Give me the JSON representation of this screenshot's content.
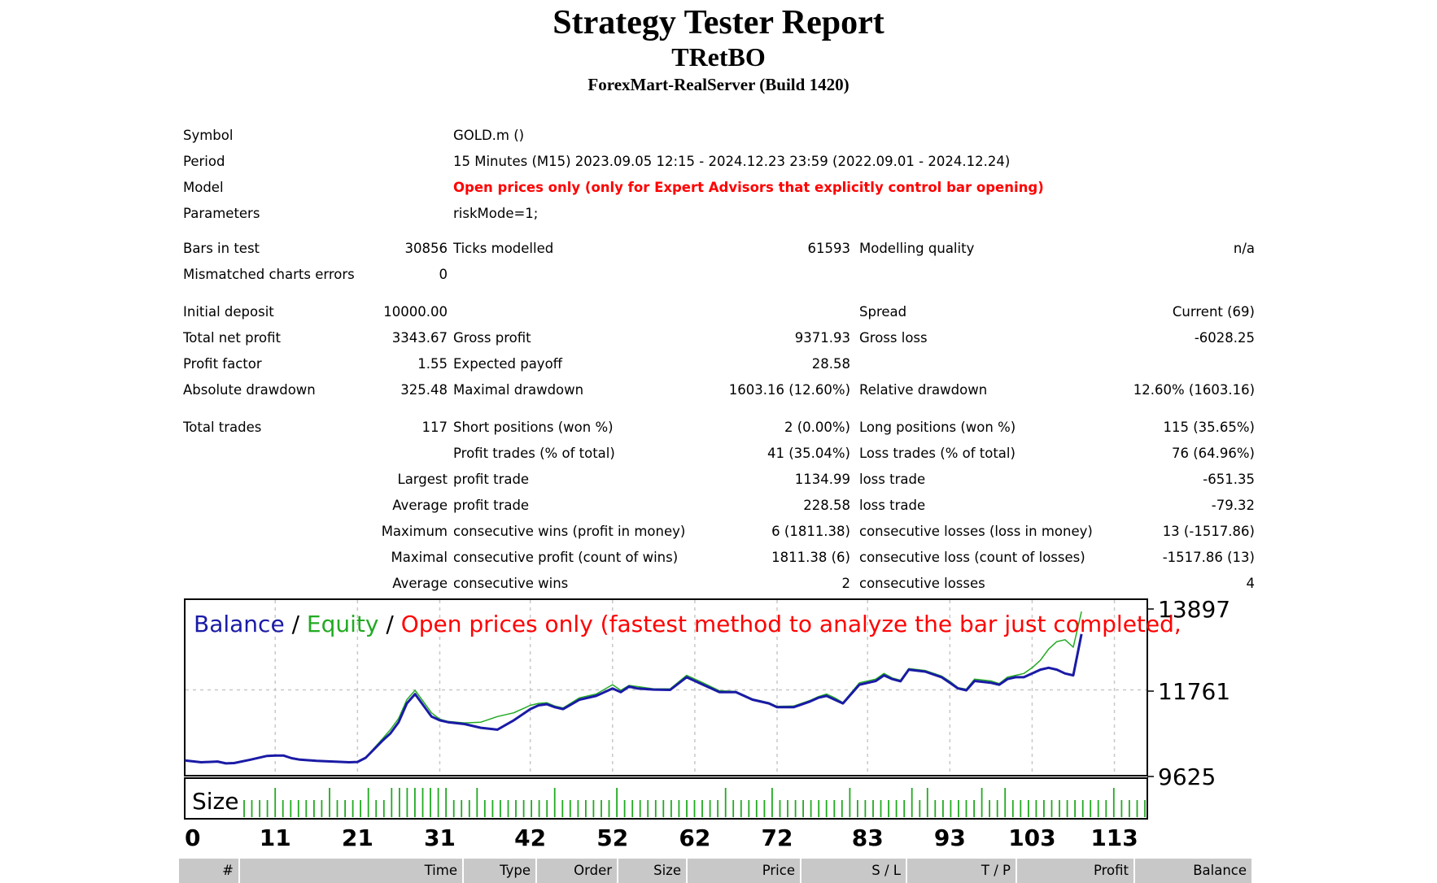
{
  "report": {
    "title": "Strategy Tester Report",
    "ea_name": "TRetBO",
    "server": "ForexMart-RealServer (Build 1420)"
  },
  "settings": {
    "symbol_label": "Symbol",
    "symbol_value": "GOLD.m ()",
    "period_label": "Period",
    "period_value": "15 Minutes (M15) 2023.09.05 12:15 - 2024.12.23 23:59 (2022.09.01 - 2024.12.24)",
    "model_label": "Model",
    "model_value": "Open prices only (only for Expert Advisors that explicitly control bar opening)",
    "parameters_label": "Parameters",
    "parameters_value": "riskMode=1;"
  },
  "test": {
    "bars_label": "Bars in test",
    "bars_value": "30856",
    "ticks_label": "Ticks modelled",
    "ticks_value": "61593",
    "quality_label": "Modelling quality",
    "quality_value": "n/a",
    "mismatch_label": "Mismatched charts errors",
    "mismatch_value": "0"
  },
  "money": {
    "initial_deposit_label": "Initial deposit",
    "initial_deposit_value": "10000.00",
    "spread_label": "Spread",
    "spread_value": "Current (69)",
    "net_profit_label": "Total net profit",
    "net_profit_value": "3343.67",
    "gross_profit_label": "Gross profit",
    "gross_profit_value": "9371.93",
    "gross_loss_label": "Gross loss",
    "gross_loss_value": "-6028.25",
    "profit_factor_label": "Profit factor",
    "profit_factor_value": "1.55",
    "expected_payoff_label": "Expected payoff",
    "expected_payoff_value": "28.58",
    "abs_dd_label": "Absolute drawdown",
    "abs_dd_value": "325.48",
    "max_dd_label": "Maximal drawdown",
    "max_dd_value": "1603.16 (12.60%)",
    "rel_dd_label": "Relative drawdown",
    "rel_dd_value": "12.60% (1603.16)"
  },
  "trades": {
    "total_label": "Total trades",
    "total_value": "117",
    "short_label": "Short positions (won %)",
    "short_value": "2 (0.00%)",
    "long_label": "Long positions (won %)",
    "long_value": "115 (35.65%)",
    "profit_trades_label": "Profit trades (% of total)",
    "profit_trades_value": "41 (35.04%)",
    "loss_trades_label": "Loss trades (% of total)",
    "loss_trades_value": "76 (64.96%)",
    "largest_label": "Largest",
    "largest_profit_label": "profit trade",
    "largest_profit_value": "1134.99",
    "largest_loss_label": "loss trade",
    "largest_loss_value": "-651.35",
    "average_label": "Average",
    "average_profit_label": "profit trade",
    "average_profit_value": "228.58",
    "average_loss_label": "loss trade",
    "average_loss_value": "-79.32",
    "maximum_label": "Maximum",
    "max_cons_wins_label": "consecutive wins (profit in money)",
    "max_cons_wins_value": "6 (1811.38)",
    "max_cons_losses_label": "consecutive losses (loss in money)",
    "max_cons_losses_value": "13 (-1517.86)",
    "maximal_label": "Maximal",
    "maximal_cons_profit_label": "consecutive profit (count of wins)",
    "maximal_cons_profit_value": "1811.38 (6)",
    "maximal_cons_loss_label": "consecutive loss (count of losses)",
    "maximal_cons_loss_value": "-1517.86 (13)",
    "average2_label": "Average",
    "avg_cons_wins_label": "consecutive wins",
    "avg_cons_wins_value": "2",
    "avg_cons_losses_label": "consecutive losses",
    "avg_cons_losses_value": "4"
  },
  "colors": {
    "balance": "#1a1aa6",
    "equity": "#22aa22",
    "model_text": "#ff0000",
    "header_bg": "#c8c8c8"
  },
  "chart_data": {
    "type": "line",
    "title_parts": [
      "Balance",
      " / ",
      "Equity",
      " / ",
      "Open prices only (fastest method to analyze the bar just completed,"
    ],
    "y_ticks": [
      "13897",
      "11761",
      "9625"
    ],
    "ylim": [
      9625,
      13897
    ],
    "xlim": [
      0,
      117
    ],
    "x_ticks": [
      "0",
      "11",
      "21",
      "31",
      "42",
      "52",
      "62",
      "72",
      "83",
      "93",
      "103",
      "113"
    ],
    "size_label": "Size",
    "grid": true,
    "series": [
      {
        "name": "Balance",
        "x": [
          0,
          2,
          4,
          5,
          6,
          8,
          10,
          11,
          12,
          13,
          14,
          16,
          18,
          20,
          21,
          22,
          24,
          25,
          26,
          27,
          28,
          30,
          31,
          32,
          34,
          36,
          38,
          40,
          41,
          42,
          43,
          44,
          45,
          46,
          48,
          50,
          52,
          53,
          54,
          55,
          57,
          59,
          61,
          63,
          65,
          67,
          69,
          71,
          72,
          74,
          76,
          77,
          78,
          79,
          80,
          82,
          84,
          85,
          86,
          87,
          88,
          90,
          92,
          93,
          94,
          95,
          96,
          98,
          99,
          100,
          101,
          102,
          103,
          104,
          105,
          106,
          107,
          108,
          109
        ],
        "values": [
          9880,
          9830,
          9850,
          9800,
          9810,
          9900,
          10000,
          10010,
          10010,
          9940,
          9900,
          9870,
          9850,
          9830,
          9840,
          9950,
          10400,
          10600,
          10900,
          11400,
          11650,
          11050,
          10950,
          10900,
          10850,
          10750,
          10700,
          10950,
          11100,
          11250,
          11350,
          11380,
          11300,
          11250,
          11500,
          11600,
          11800,
          11700,
          11850,
          11800,
          11770,
          11760,
          12100,
          11900,
          11700,
          11700,
          11500,
          11400,
          11300,
          11300,
          11450,
          11550,
          11600,
          11500,
          11400,
          11900,
          12000,
          12150,
          12050,
          11990,
          12300,
          12250,
          12100,
          11950,
          11800,
          11750,
          12000,
          11950,
          11900,
          12050,
          12100,
          12100,
          12200,
          12300,
          12350,
          12300,
          12200,
          12150,
          13250
        ]
      },
      {
        "name": "Equity",
        "x": [
          0,
          2,
          4,
          5,
          6,
          8,
          10,
          11,
          12,
          13,
          14,
          16,
          18,
          20,
          21,
          22,
          24,
          25,
          26,
          27,
          28,
          30,
          31,
          32,
          34,
          36,
          38,
          40,
          41,
          42,
          43,
          44,
          45,
          46,
          48,
          50,
          52,
          53,
          54,
          55,
          57,
          59,
          61,
          63,
          65,
          67,
          69,
          71,
          72,
          74,
          76,
          77,
          78,
          79,
          80,
          82,
          84,
          85,
          86,
          87,
          88,
          90,
          92,
          93,
          94,
          95,
          96,
          98,
          99,
          100,
          101,
          102,
          103,
          104,
          105,
          106,
          107,
          108,
          109
        ],
        "values": [
          9870,
          9840,
          9860,
          9810,
          9820,
          9910,
          10010,
          10020,
          10000,
          9950,
          9910,
          9880,
          9860,
          9840,
          9850,
          9960,
          10450,
          10700,
          11000,
          11500,
          11750,
          11150,
          10980,
          10920,
          10880,
          10900,
          11050,
          11150,
          11250,
          11350,
          11400,
          11420,
          11330,
          11280,
          11550,
          11650,
          11900,
          11750,
          11880,
          11850,
          11790,
          11790,
          12150,
          11950,
          11740,
          11720,
          11520,
          11420,
          11320,
          11330,
          11480,
          11580,
          11650,
          11550,
          11420,
          11950,
          12050,
          12200,
          12080,
          12020,
          12330,
          12280,
          12130,
          11990,
          11820,
          11780,
          12050,
          12000,
          11930,
          12100,
          12150,
          12200,
          12350,
          12550,
          12850,
          13050,
          13100,
          12900,
          13850
        ]
      }
    ],
    "size_bars": [
      1,
      1,
      1,
      1,
      2,
      1,
      1,
      1,
      1,
      1,
      1,
      2,
      1,
      1,
      1,
      1,
      2,
      1,
      1,
      2,
      2,
      2,
      2,
      2,
      2,
      2,
      2,
      1,
      1,
      1,
      2,
      1,
      1,
      1,
      1,
      1,
      1,
      1,
      1,
      1,
      2,
      1,
      1,
      1,
      1,
      1,
      1,
      1,
      2,
      1,
      1,
      1,
      1,
      1,
      1,
      1,
      1,
      1,
      1,
      1,
      1,
      1,
      2,
      1,
      1,
      1,
      1,
      1,
      2,
      1,
      1,
      1,
      1,
      1,
      1,
      1,
      1,
      1,
      2,
      1,
      1,
      1,
      1,
      1,
      1,
      1,
      2,
      1,
      2,
      1,
      1,
      1,
      1,
      1,
      1,
      2,
      1,
      1,
      2,
      1,
      1,
      1,
      1,
      1,
      1,
      1,
      1,
      1,
      1,
      1,
      1,
      1,
      2,
      1,
      1,
      1,
      1
    ]
  },
  "deals_table": {
    "headers": [
      "#",
      "Time",
      "Type",
      "Order",
      "Size",
      "Price",
      "S / L",
      "T / P",
      "Profit",
      "Balance"
    ]
  }
}
